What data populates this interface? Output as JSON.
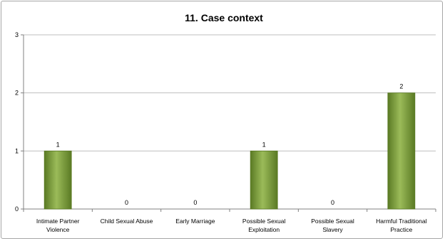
{
  "chart_data": {
    "type": "bar",
    "title": "11.  Case context",
    "categories": [
      [
        "Intimate Partner",
        "Violence"
      ],
      [
        "Child Sexual Abuse"
      ],
      [
        "Early Marriage"
      ],
      [
        "Possible Sexual",
        "Exploitation"
      ],
      [
        "Possible Sexual",
        "Slavery"
      ],
      [
        "Harmful Traditional",
        "Practice"
      ]
    ],
    "values": [
      1,
      0,
      0,
      1,
      0,
      2
    ],
    "data_labels": [
      "1",
      "0",
      "0",
      "1",
      "0",
      "2"
    ],
    "y_ticks": [
      "0",
      "1",
      "2",
      "3"
    ],
    "ylim": [
      0,
      3
    ],
    "grid": true,
    "legend": "none",
    "bar_color": "#77933c",
    "bar_highlight": "#9bbb59",
    "bar_shadow": "#5a7a24",
    "gridline_color": "#bfbfbf",
    "xlabel": "",
    "ylabel": ""
  }
}
